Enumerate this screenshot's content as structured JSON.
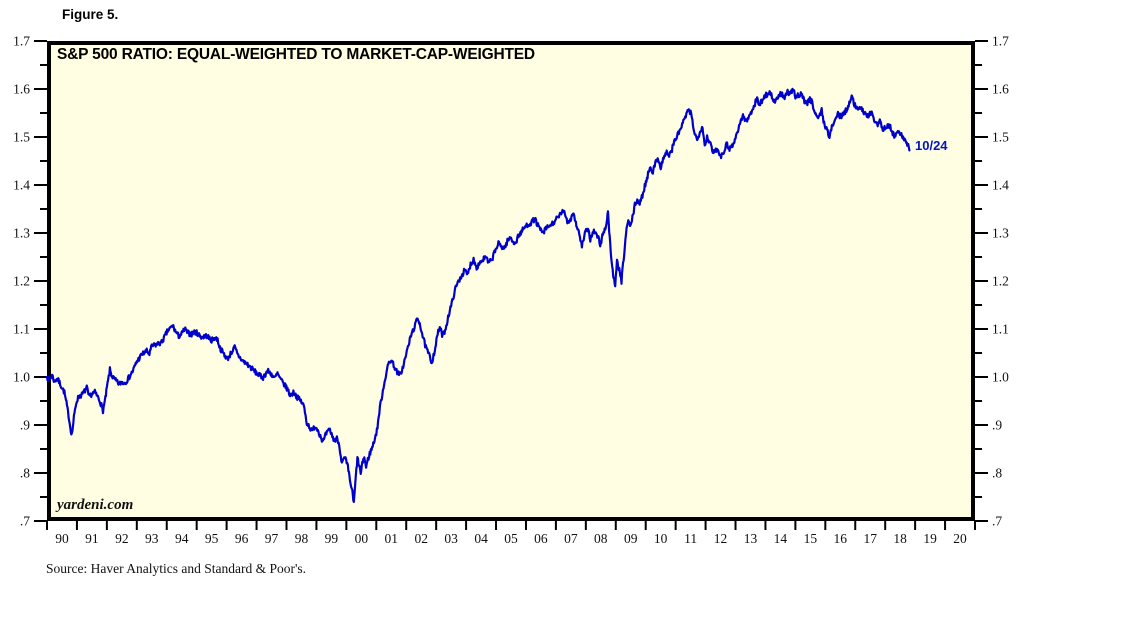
{
  "figure_label": "Figure 5.",
  "watermark": "yardeni.com",
  "end_label": "10/24",
  "source_note": "Source: Haver Analytics and Standard & Poor's.",
  "colors": {
    "line": "#0000cc",
    "plot_bg": "#fffee2",
    "axis": "#000000",
    "end_label_color": "#0013cc",
    "page_bg": "#ffffff"
  },
  "chart_data": {
    "type": "line",
    "title": "S&P 500 RATIO: EQUAL-WEIGHTED TO MARKET-CAP-WEIGHTED",
    "grid": false,
    "legend": false,
    "x_axis": {
      "min": 1990,
      "max": 2021,
      "year_step": 1,
      "tick_values": [
        1990,
        1991,
        1992,
        1993,
        1994,
        1995,
        1996,
        1997,
        1998,
        1999,
        2000,
        2001,
        2002,
        2003,
        2004,
        2005,
        2006,
        2007,
        2008,
        2009,
        2010,
        2011,
        2012,
        2013,
        2014,
        2015,
        2016,
        2017,
        2018,
        2019,
        2020
      ],
      "tick_labels": [
        "90",
        "91",
        "92",
        "93",
        "94",
        "95",
        "96",
        "97",
        "98",
        "99",
        "00",
        "01",
        "02",
        "03",
        "04",
        "05",
        "06",
        "07",
        "08",
        "09",
        "10",
        "11",
        "12",
        "13",
        "14",
        "15",
        "16",
        "17",
        "18",
        "19",
        "20"
      ]
    },
    "y_axis": {
      "min": 0.7,
      "max": 1.7,
      "major_step": 0.1,
      "minor_step": 0.05,
      "tick_values": [
        1.7,
        1.6,
        1.5,
        1.4,
        1.3,
        1.2,
        1.1,
        1.0,
        0.9,
        0.8,
        0.7
      ],
      "tick_labels": [
        "1.7",
        "1.6",
        "1.5",
        "1.4",
        "1.3",
        "1.2",
        "1.1",
        "1.0",
        ".9",
        ".8",
        ".7"
      ]
    },
    "series": [
      {
        "name": "S&P 500 Equal-Weighted to Market-Cap-Weighted Ratio",
        "end_point_label": "10/24",
        "x": [
          1990.0,
          1990.08,
          1990.17,
          1990.25,
          1990.33,
          1990.42,
          1990.5,
          1990.58,
          1990.65,
          1990.72,
          1990.78,
          1990.83,
          1990.9,
          1990.96,
          1991.0,
          1991.08,
          1991.17,
          1991.25,
          1991.33,
          1991.4,
          1991.5,
          1991.6,
          1991.7,
          1991.78,
          1991.87,
          1991.95,
          1992.02,
          1992.1,
          1992.17,
          1992.25,
          1992.33,
          1992.42,
          1992.5,
          1992.58,
          1992.67,
          1992.75,
          1992.87,
          1993.0,
          1993.17,
          1993.33,
          1993.42,
          1993.5,
          1993.67,
          1993.83,
          1994.03,
          1994.13,
          1994.2,
          1994.3,
          1994.4,
          1994.5,
          1994.6,
          1994.7,
          1994.83,
          1994.92,
          1995.0,
          1995.17,
          1995.33,
          1995.5,
          1995.6,
          1995.7,
          1995.78,
          1995.93,
          1996.03,
          1996.17,
          1996.27,
          1996.37,
          1996.53,
          1996.7,
          1996.8,
          1996.97,
          1997.1,
          1997.22,
          1997.37,
          1997.5,
          1997.6,
          1997.7,
          1997.8,
          1997.9,
          1998.03,
          1998.12,
          1998.25,
          1998.38,
          1998.48,
          1998.58,
          1998.68,
          1998.78,
          1998.85,
          1998.95,
          1999.05,
          1999.13,
          1999.22,
          1999.33,
          1999.45,
          1999.55,
          1999.63,
          1999.7,
          1999.78,
          1999.85,
          1999.95,
          2000.05,
          2000.12,
          2000.18,
          2000.25,
          2000.32,
          2000.37,
          2000.44,
          2000.48,
          2000.55,
          2000.6,
          2000.66,
          2000.72,
          2000.78,
          2000.88,
          2001.02,
          2001.12,
          2001.22,
          2001.32,
          2001.42,
          2001.5,
          2001.58,
          2001.68,
          2001.78,
          2001.88,
          2001.98,
          2002.08,
          2002.18,
          2002.28,
          2002.38,
          2002.45,
          2002.55,
          2002.65,
          2002.75,
          2002.85,
          2002.95,
          2003.05,
          2003.12,
          2003.22,
          2003.32,
          2003.42,
          2003.52,
          2003.62,
          2003.72,
          2003.82,
          2003.95,
          2004.05,
          2004.15,
          2004.25,
          2004.35,
          2004.45,
          2004.55,
          2004.65,
          2004.75,
          2004.85,
          2004.95,
          2005.08,
          2005.18,
          2005.28,
          2005.38,
          2005.48,
          2005.58,
          2005.65,
          2005.75,
          2005.85,
          2005.95,
          2006.08,
          2006.2,
          2006.3,
          2006.4,
          2006.5,
          2006.57,
          2006.68,
          2006.8,
          2006.9,
          2007.0,
          2007.1,
          2007.2,
          2007.3,
          2007.4,
          2007.5,
          2007.57,
          2007.65,
          2007.72,
          2007.8,
          2007.87,
          2007.97,
          2008.07,
          2008.15,
          2008.25,
          2008.33,
          2008.42,
          2008.48,
          2008.57,
          2008.65,
          2008.71,
          2008.74,
          2008.78,
          2008.83,
          2008.88,
          2008.93,
          2008.98,
          2009.04,
          2009.1,
          2009.15,
          2009.19,
          2009.28,
          2009.36,
          2009.42,
          2009.48,
          2009.56,
          2009.64,
          2009.72,
          2009.8,
          2009.89,
          2009.97,
          2010.06,
          2010.14,
          2010.24,
          2010.34,
          2010.42,
          2010.5,
          2010.6,
          2010.7,
          2010.78,
          2010.86,
          2010.95,
          2011.05,
          2011.14,
          2011.24,
          2011.34,
          2011.44,
          2011.52,
          2011.62,
          2011.72,
          2011.82,
          2011.9,
          2011.97,
          2012.05,
          2012.14,
          2012.24,
          2012.34,
          2012.44,
          2012.52,
          2012.62,
          2012.7,
          2012.8,
          2012.9,
          2012.98,
          2013.08,
          2013.16,
          2013.25,
          2013.35,
          2013.45,
          2013.55,
          2013.65,
          2013.72,
          2013.8,
          2013.9,
          2013.98,
          2014.08,
          2014.16,
          2014.26,
          2014.34,
          2014.44,
          2014.54,
          2014.64,
          2014.74,
          2014.84,
          2014.92,
          2015.02,
          2015.12,
          2015.2,
          2015.3,
          2015.4,
          2015.48,
          2015.56,
          2015.64,
          2015.74,
          2015.82,
          2015.88,
          2015.96,
          2016.04,
          2016.14,
          2016.24,
          2016.32,
          2016.42,
          2016.52,
          2016.62,
          2016.72,
          2016.8,
          2016.88,
          2016.95,
          2017.05,
          2017.15,
          2017.25,
          2017.35,
          2017.45,
          2017.55,
          2017.65,
          2017.75,
          2017.82,
          2017.92,
          2018.0,
          2018.08,
          2018.17,
          2018.25,
          2018.32,
          2018.42,
          2018.5,
          2018.58,
          2018.65,
          2018.72,
          2018.77,
          2018.81
        ],
        "y": [
          1.0,
          0.993,
          1.004,
          0.99,
          0.998,
          0.988,
          0.978,
          0.968,
          0.945,
          0.92,
          0.895,
          0.88,
          0.915,
          0.94,
          0.952,
          0.96,
          0.963,
          0.97,
          0.978,
          0.958,
          0.965,
          0.968,
          0.958,
          0.948,
          0.93,
          0.955,
          0.985,
          1.015,
          1.002,
          0.995,
          0.99,
          0.985,
          0.99,
          0.987,
          0.993,
          1.0,
          1.013,
          1.032,
          1.047,
          1.054,
          1.048,
          1.064,
          1.068,
          1.072,
          1.096,
          1.102,
          1.107,
          1.094,
          1.085,
          1.09,
          1.1,
          1.092,
          1.089,
          1.094,
          1.092,
          1.083,
          1.086,
          1.076,
          1.082,
          1.078,
          1.06,
          1.046,
          1.038,
          1.052,
          1.062,
          1.046,
          1.034,
          1.026,
          1.02,
          1.01,
          1.003,
          0.999,
          1.013,
          1.006,
          0.997,
          1.007,
          0.995,
          0.986,
          0.975,
          0.962,
          0.968,
          0.956,
          0.95,
          0.94,
          0.905,
          0.895,
          0.886,
          0.898,
          0.89,
          0.878,
          0.865,
          0.882,
          0.89,
          0.873,
          0.868,
          0.873,
          0.852,
          0.82,
          0.832,
          0.812,
          0.785,
          0.768,
          0.737,
          0.795,
          0.83,
          0.812,
          0.798,
          0.825,
          0.832,
          0.812,
          0.828,
          0.84,
          0.856,
          0.888,
          0.936,
          0.972,
          1.005,
          1.03,
          1.036,
          1.025,
          1.012,
          1.003,
          1.018,
          1.042,
          1.068,
          1.09,
          1.105,
          1.122,
          1.113,
          1.085,
          1.062,
          1.048,
          1.03,
          1.055,
          1.09,
          1.103,
          1.085,
          1.102,
          1.13,
          1.152,
          1.18,
          1.196,
          1.208,
          1.222,
          1.213,
          1.235,
          1.245,
          1.228,
          1.238,
          1.244,
          1.25,
          1.238,
          1.242,
          1.26,
          1.278,
          1.272,
          1.268,
          1.283,
          1.29,
          1.282,
          1.278,
          1.295,
          1.302,
          1.312,
          1.318,
          1.323,
          1.33,
          1.315,
          1.305,
          1.3,
          1.31,
          1.315,
          1.32,
          1.328,
          1.333,
          1.345,
          1.34,
          1.322,
          1.33,
          1.344,
          1.325,
          1.31,
          1.292,
          1.272,
          1.298,
          1.31,
          1.287,
          1.305,
          1.298,
          1.29,
          1.274,
          1.298,
          1.31,
          1.33,
          1.345,
          1.305,
          1.262,
          1.23,
          1.205,
          1.188,
          1.24,
          1.228,
          1.212,
          1.198,
          1.258,
          1.31,
          1.325,
          1.312,
          1.332,
          1.358,
          1.37,
          1.36,
          1.378,
          1.398,
          1.418,
          1.438,
          1.428,
          1.448,
          1.456,
          1.436,
          1.458,
          1.468,
          1.462,
          1.47,
          1.49,
          1.502,
          1.514,
          1.528,
          1.545,
          1.555,
          1.548,
          1.512,
          1.492,
          1.515,
          1.522,
          1.482,
          1.5,
          1.49,
          1.466,
          1.475,
          1.47,
          1.46,
          1.472,
          1.486,
          1.476,
          1.483,
          1.493,
          1.515,
          1.53,
          1.545,
          1.532,
          1.542,
          1.556,
          1.57,
          1.58,
          1.566,
          1.578,
          1.586,
          1.59,
          1.593,
          1.578,
          1.572,
          1.586,
          1.59,
          1.583,
          1.593,
          1.59,
          1.598,
          1.582,
          1.588,
          1.592,
          1.575,
          1.57,
          1.58,
          1.572,
          1.555,
          1.54,
          1.545,
          1.556,
          1.528,
          1.518,
          1.5,
          1.525,
          1.535,
          1.548,
          1.542,
          1.55,
          1.558,
          1.572,
          1.588,
          1.57,
          1.562,
          1.558,
          1.556,
          1.548,
          1.545,
          1.55,
          1.532,
          1.528,
          1.536,
          1.514,
          1.52,
          1.525,
          1.52,
          1.508,
          1.5,
          1.512,
          1.506,
          1.5,
          1.494,
          1.488,
          1.482,
          1.472
        ]
      }
    ]
  }
}
